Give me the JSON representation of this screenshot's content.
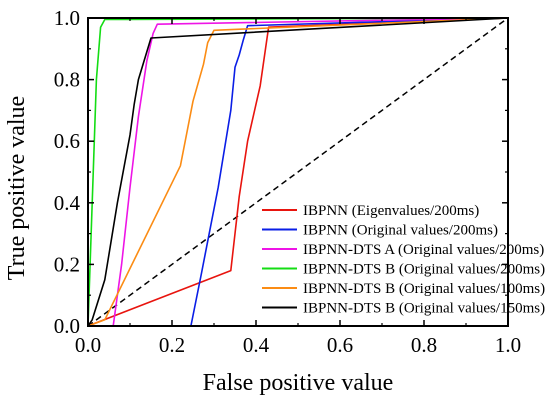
{
  "chart_data": {
    "type": "line",
    "title": "",
    "xlabel": "False positive value",
    "ylabel": "True positive value",
    "xlim": [
      0,
      1
    ],
    "ylim": [
      0,
      1
    ],
    "x_ticks": [
      "0.0",
      "0.2",
      "0.4",
      "0.6",
      "0.8",
      "1.0"
    ],
    "y_ticks": [
      "0.0",
      "0.2",
      "0.4",
      "0.6",
      "0.8",
      "1.0"
    ],
    "grid": false,
    "legend_position": "bottom-right",
    "reference_line": {
      "style": "dashed",
      "color": "#000000",
      "x": [
        0,
        1
      ],
      "y": [
        0,
        1
      ]
    },
    "series": [
      {
        "name": "IBPNN  (Eigenvalues/200ms)",
        "color": "#e8140e",
        "x": [
          0,
          0.34,
          0.36,
          0.38,
          0.4,
          0.41,
          0.43,
          1.0
        ],
        "y": [
          0,
          0.18,
          0.42,
          0.6,
          0.72,
          0.78,
          0.97,
          1.0
        ]
      },
      {
        "name": "IBPNN  (Original values/200ms)",
        "color": "#0a1ee6",
        "x": [
          0,
          0.245,
          0.27,
          0.31,
          0.34,
          0.35,
          0.36,
          0.37,
          0.38,
          1.0
        ],
        "y": [
          0,
          0.0,
          0.17,
          0.45,
          0.7,
          0.84,
          0.88,
          0.93,
          0.975,
          1.0
        ]
      },
      {
        "name": "IBPNN-DTS A (Original values/200ms)",
        "color": "#ee14e6",
        "x": [
          0,
          0.06,
          0.08,
          0.1,
          0.12,
          0.14,
          0.155,
          0.165,
          1.0
        ],
        "y": [
          0,
          0.0,
          0.2,
          0.45,
          0.68,
          0.86,
          0.95,
          0.98,
          1.0
        ]
      },
      {
        "name": "IBPNN-DTS B (Original values/200ms)",
        "color": "#14dd14",
        "x": [
          0,
          0.01,
          0.02,
          0.03,
          0.04,
          1.0
        ],
        "y": [
          0,
          0.4,
          0.8,
          0.97,
          0.995,
          1.0
        ]
      },
      {
        "name": "IBPNN-DTS B (Original values/100ms)",
        "color": "#fb8c14",
        "x": [
          0,
          0.04,
          0.22,
          0.25,
          0.275,
          0.285,
          0.3,
          1.0
        ],
        "y": [
          0,
          0.02,
          0.52,
          0.73,
          0.85,
          0.92,
          0.96,
          1.0
        ]
      },
      {
        "name": "IBPNN-DTS B (Original values/150ms)",
        "color": "#000000",
        "x": [
          0,
          0.01,
          0.04,
          0.07,
          0.1,
          0.11,
          0.12,
          0.14,
          0.15,
          1.0
        ],
        "y": [
          0,
          0.02,
          0.15,
          0.4,
          0.62,
          0.72,
          0.8,
          0.89,
          0.935,
          1.0
        ]
      }
    ]
  }
}
